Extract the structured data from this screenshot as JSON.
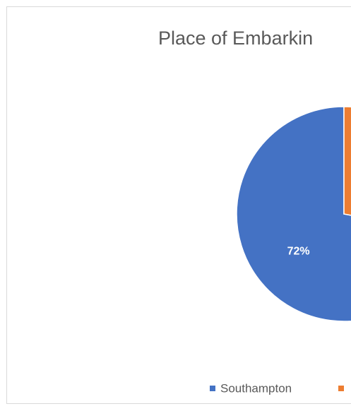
{
  "chart_data": {
    "type": "pie",
    "title": "Place of Embarkin",
    "categories": [
      "Southampton",
      null
    ],
    "values": [
      72,
      28
    ],
    "value_labels": [
      "72%",
      null
    ],
    "colors": [
      "#4472c4",
      "#ed7d31"
    ]
  }
}
